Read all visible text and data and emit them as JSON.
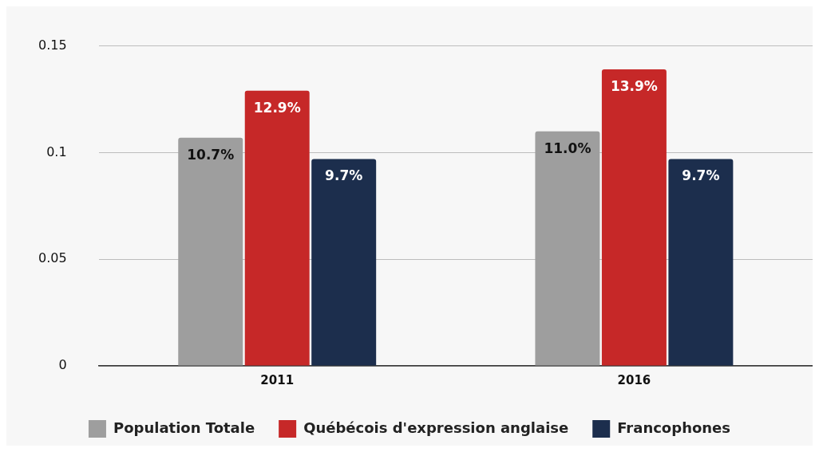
{
  "chart_data": {
    "type": "bar",
    "categories": [
      "2011",
      "2016"
    ],
    "series": [
      {
        "name": "Population Totale",
        "color": "#9e9e9e",
        "values": [
          0.107,
          0.11
        ],
        "value_labels": [
          "10.7%",
          "11.0%"
        ]
      },
      {
        "name": "Québécois d'expression anglaise",
        "color": "#c62828",
        "values": [
          0.129,
          0.139
        ],
        "value_labels": [
          "12.9%",
          "13.9%"
        ]
      },
      {
        "name": "Francophones",
        "color": "#1c2e4d",
        "values": [
          0.097,
          0.097
        ],
        "value_labels": [
          "9.7%",
          "9.7%"
        ]
      }
    ],
    "ylim": [
      0,
      0.15
    ],
    "yticks": [
      0,
      0.05,
      0.1,
      0.15
    ],
    "grid": "y",
    "legend": "bottom"
  }
}
